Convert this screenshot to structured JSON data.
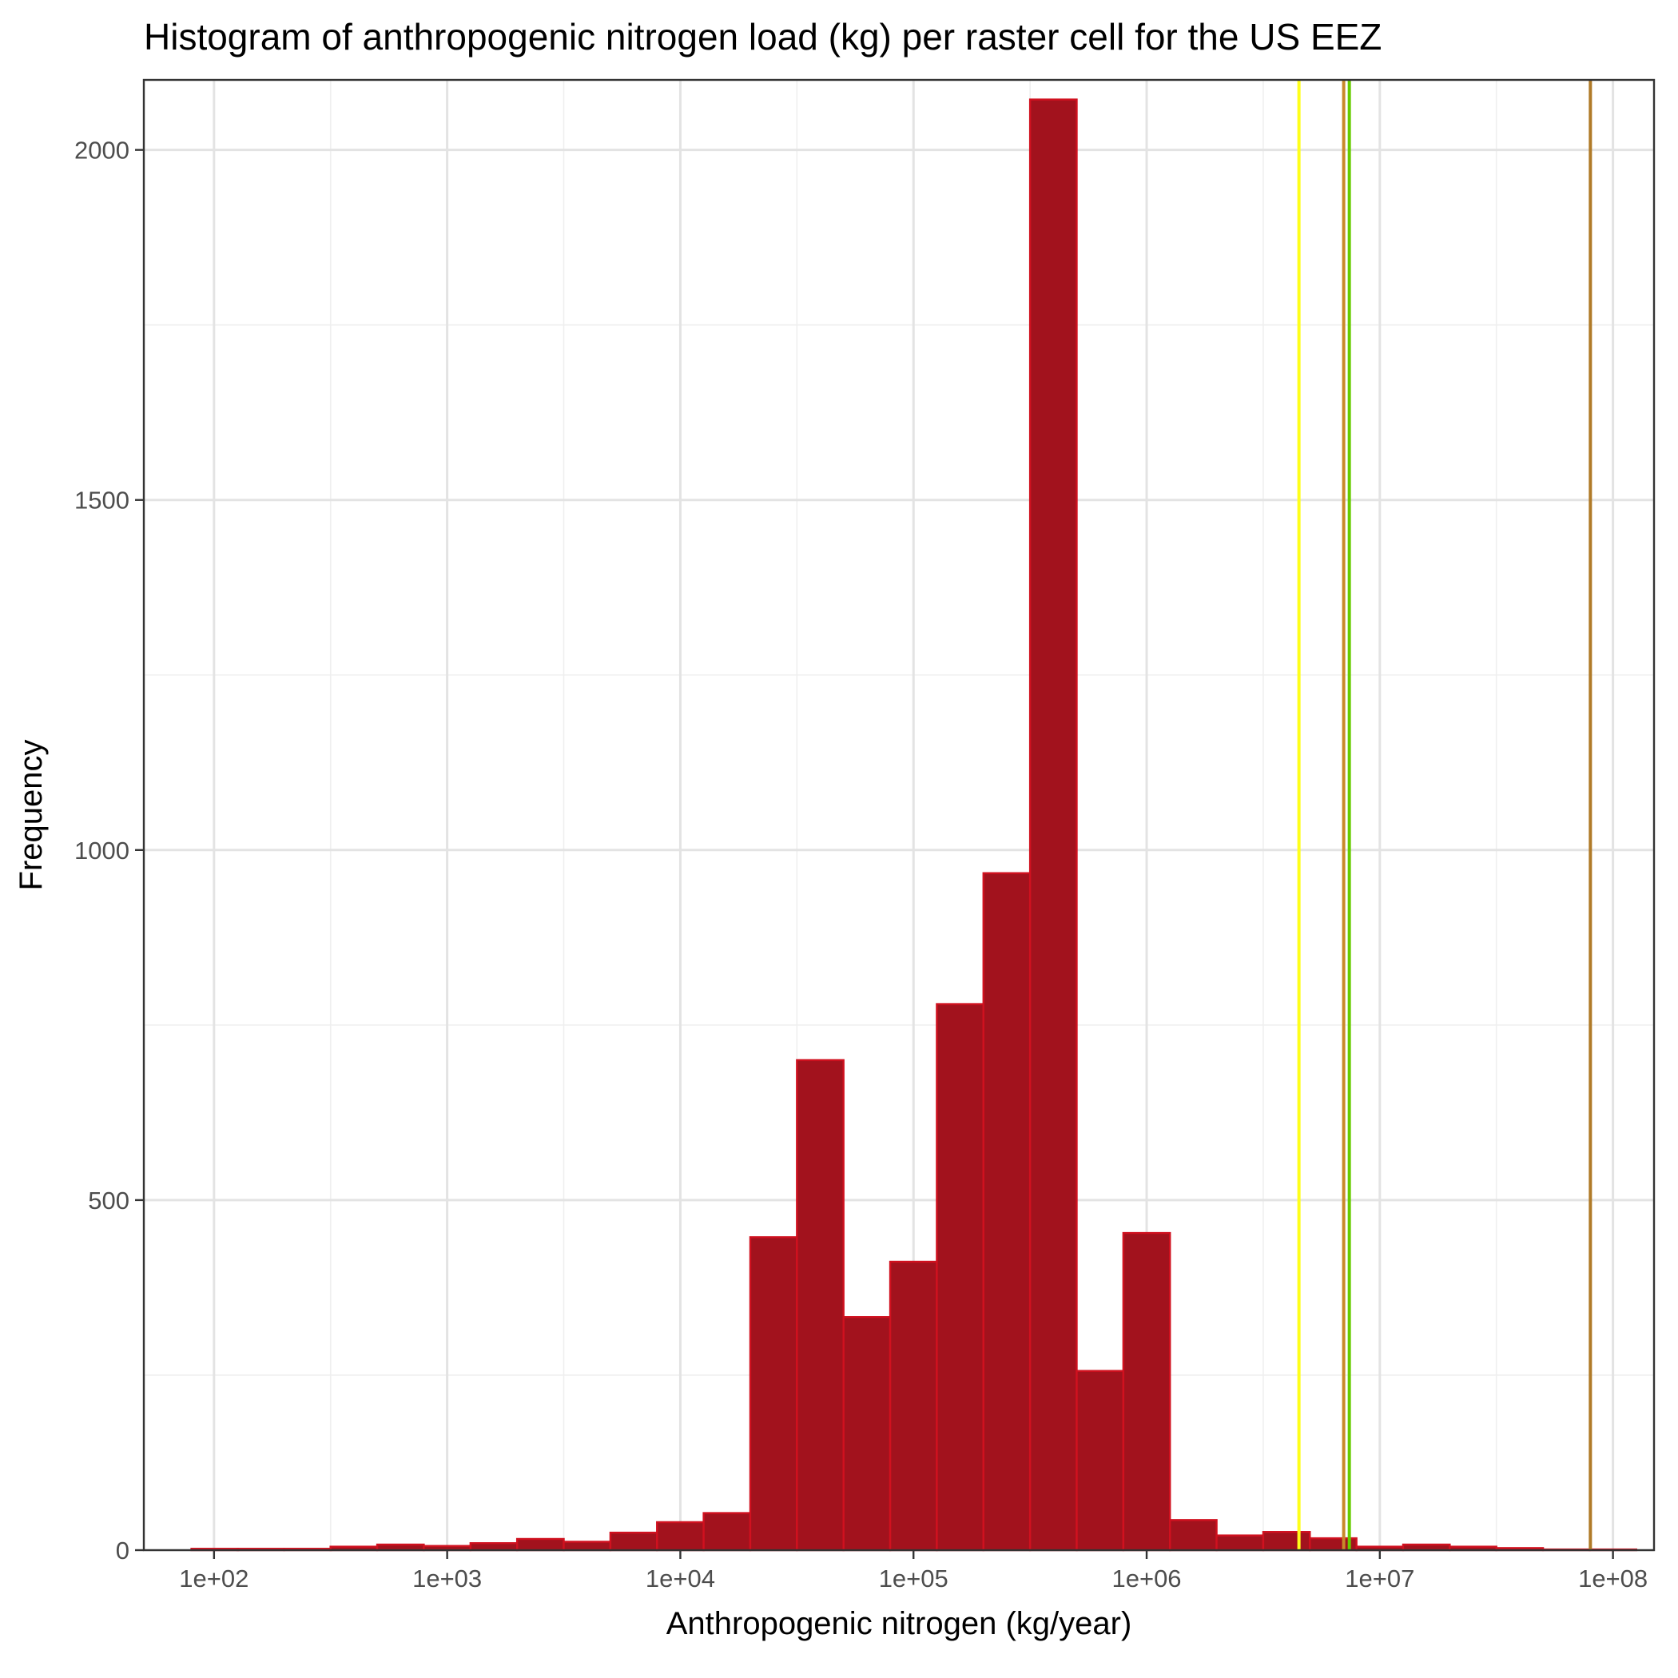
{
  "chart_data": {
    "type": "bar",
    "title": "Histogram of anthropogenic nitrogen load (kg) per raster cell for the US EEZ",
    "xlabel": "Anthropogenic nitrogen (kg/year)",
    "ylabel": "Frequency",
    "x_scale": "log10",
    "xlim": [
      50,
      150000000
    ],
    "ylim": [
      0,
      2100
    ],
    "x_ticks": [
      {
        "value": 100,
        "label": "1e+02"
      },
      {
        "value": 1000,
        "label": "1e+03"
      },
      {
        "value": 10000,
        "label": "1e+04"
      },
      {
        "value": 100000,
        "label": "1e+05"
      },
      {
        "value": 1000000,
        "label": "1e+06"
      },
      {
        "value": 10000000,
        "label": "1e+07"
      },
      {
        "value": 100000000,
        "label": "1e+08"
      }
    ],
    "y_ticks": [
      {
        "value": 0,
        "label": "0"
      },
      {
        "value": 500,
        "label": "500"
      },
      {
        "value": 1000,
        "label": "1000"
      },
      {
        "value": 1500,
        "label": "1500"
      },
      {
        "value": 2000,
        "label": "2000"
      }
    ],
    "grid": true,
    "bin_width_log10": 0.2,
    "bins": [
      {
        "x_start": 80,
        "count": 2
      },
      {
        "x_start": 126,
        "count": 2
      },
      {
        "x_start": 200,
        "count": 2
      },
      {
        "x_start": 316,
        "count": 5
      },
      {
        "x_start": 501,
        "count": 8
      },
      {
        "x_start": 794,
        "count": 6
      },
      {
        "x_start": 1259,
        "count": 10
      },
      {
        "x_start": 1995,
        "count": 16
      },
      {
        "x_start": 3162,
        "count": 12
      },
      {
        "x_start": 5012,
        "count": 25
      },
      {
        "x_start": 7943,
        "count": 40
      },
      {
        "x_start": 12589,
        "count": 53
      },
      {
        "x_start": 19953,
        "count": 447
      },
      {
        "x_start": 31623,
        "count": 700
      },
      {
        "x_start": 50119,
        "count": 333
      },
      {
        "x_start": 79433,
        "count": 412
      },
      {
        "x_start": 125893,
        "count": 780
      },
      {
        "x_start": 199526,
        "count": 967
      },
      {
        "x_start": 316228,
        "count": 2072
      },
      {
        "x_start": 501187,
        "count": 256
      },
      {
        "x_start": 794328,
        "count": 453
      },
      {
        "x_start": 1258925,
        "count": 43
      },
      {
        "x_start": 1995262,
        "count": 21
      },
      {
        "x_start": 3162278,
        "count": 26
      },
      {
        "x_start": 5011872,
        "count": 17
      },
      {
        "x_start": 7943282,
        "count": 5
      },
      {
        "x_start": 12589254,
        "count": 8
      },
      {
        "x_start": 19952623,
        "count": 5
      },
      {
        "x_start": 31622777,
        "count": 3
      },
      {
        "x_start": 50118723,
        "count": 1
      },
      {
        "x_start": 79432823,
        "count": 1
      }
    ],
    "vertical_lines": [
      {
        "x": 4500000,
        "color": "#ffff1a"
      },
      {
        "x": 7000000,
        "color": "#c8892a"
      },
      {
        "x": 7400000,
        "color": "#66cc00"
      },
      {
        "x": 80000000,
        "color": "#b07a28"
      }
    ],
    "bar_fill": "#a2121d",
    "bar_outline": "#d0111f"
  }
}
